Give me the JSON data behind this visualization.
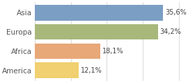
{
  "categories": [
    "Asia",
    "Europa",
    "Africa",
    "America"
  ],
  "values": [
    35.6,
    34.2,
    18.1,
    12.1
  ],
  "labels": [
    "35,6%",
    "34,2%",
    "18,1%",
    "12,1%"
  ],
  "bar_colors": [
    "#7b9ec4",
    "#a8b87a",
    "#e8a878",
    "#f0d070"
  ],
  "xlim": [
    0,
    44
  ],
  "background_color": "#ffffff",
  "label_fontsize": 7.0,
  "ytick_fontsize": 7.5,
  "bar_height": 0.82
}
